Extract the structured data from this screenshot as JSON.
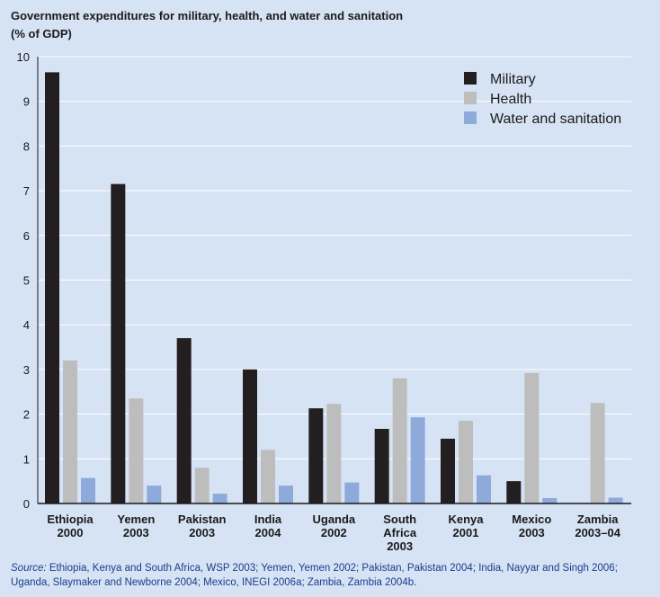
{
  "title_line1": "Government expenditures for military, health, and water and sanitation",
  "title_line2": "(% of GDP)",
  "source_label": "Source:",
  "source_text": " Ethiopia, Kenya and South Africa, WSP 2003; Yemen, Yemen 2002; Pakistan, Pakistan 2004; India, Nayyar and Singh 2006; Uganda, Slaymaker and Newborne 2004; Mexico, INEGI 2006a; Zambia, Zambia 2004b.",
  "chart_data": {
    "type": "bar",
    "categories": [
      [
        "Ethiopia",
        "2000"
      ],
      [
        "Yemen",
        "2003"
      ],
      [
        "Pakistan",
        "2003"
      ],
      [
        "India",
        "2004"
      ],
      [
        "Uganda",
        "2002"
      ],
      [
        "South",
        "Africa",
        "2003"
      ],
      [
        "Kenya",
        "2001"
      ],
      [
        "Mexico",
        "2003"
      ],
      [
        "Zambia",
        "2003–04"
      ]
    ],
    "series": [
      {
        "name": "Military",
        "color": "#231f20",
        "values": [
          9.65,
          7.15,
          3.7,
          3.0,
          2.13,
          1.67,
          1.45,
          0.5,
          0
        ]
      },
      {
        "name": "Health",
        "color": "#bdbdbd",
        "values": [
          3.2,
          2.35,
          0.8,
          1.2,
          2.23,
          2.8,
          1.85,
          2.92,
          2.25
        ]
      },
      {
        "name": "Water and sanitation",
        "color": "#8eaadb",
        "values": [
          0.57,
          0.4,
          0.22,
          0.4,
          0.47,
          1.93,
          0.63,
          0.12,
          0.13
        ]
      }
    ],
    "ylim": [
      0,
      10
    ],
    "yticks": [
      0,
      1,
      2,
      3,
      4,
      5,
      6,
      7,
      8,
      9,
      10
    ],
    "grid": true,
    "legend": "top-right"
  }
}
